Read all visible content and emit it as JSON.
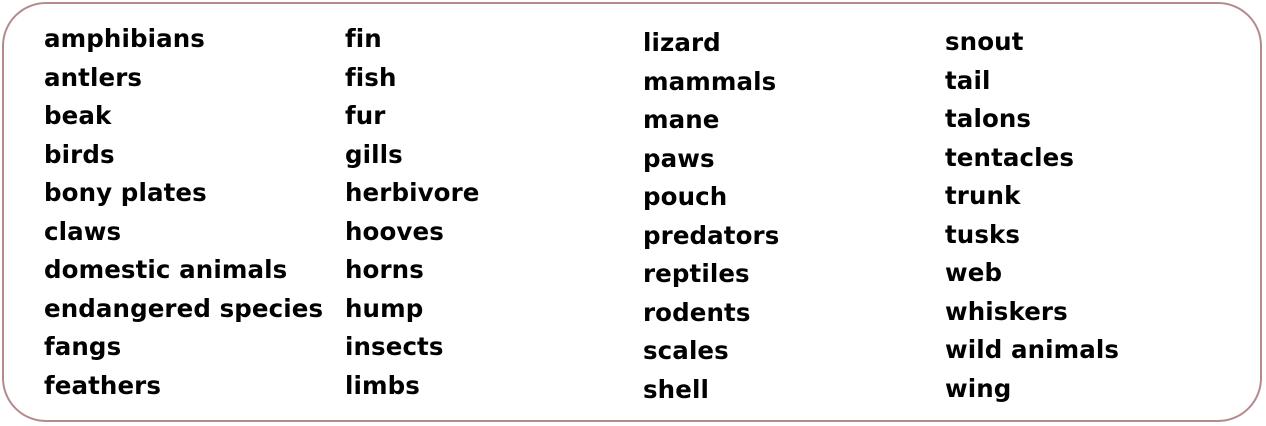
{
  "word_bank": {
    "columns": [
      {
        "words": [
          "amphibians",
          "antlers",
          "beak",
          "birds",
          "bony plates",
          "claws",
          "domestic animals",
          "endangered species",
          "fangs",
          "feathers"
        ]
      },
      {
        "words": [
          "fin",
          "fish",
          "fur",
          "gills",
          "herbivore",
          "hooves",
          "horns",
          "hump",
          "insects",
          "limbs"
        ]
      },
      {
        "words": [
          "lizard",
          "mammals",
          "mane",
          "paws",
          "pouch",
          "predators",
          "reptiles",
          "rodents",
          "scales",
          "shell"
        ]
      },
      {
        "words": [
          "snout",
          "tail",
          "talons",
          "tentacles",
          "trunk",
          "tusks",
          "web",
          "whiskers",
          "wild animals",
          "wing"
        ]
      }
    ]
  },
  "colors": {
    "border": "#b48a8c",
    "text": "#000000",
    "background": "#ffffff"
  }
}
